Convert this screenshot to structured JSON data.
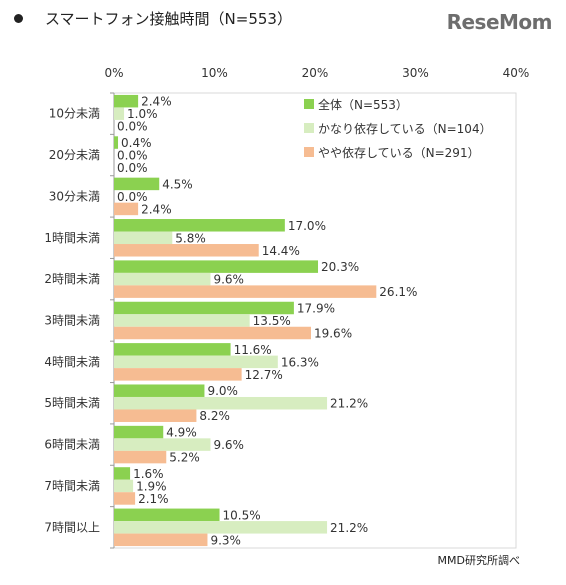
{
  "title": "スマートフォン接触時間（N=553）",
  "logo": "ReseMom",
  "source": "MMD研究所調べ",
  "colors": {
    "series": [
      "#8bd150",
      "#d7edc0",
      "#f6bc92"
    ],
    "axis_line": "#9a9a9a",
    "text": "#333333"
  },
  "chart_data": {
    "type": "bar",
    "orientation": "horizontal",
    "title": "スマートフォン接触時間（N=553）",
    "categories": [
      "10分未満",
      "20分未満",
      "30分未満",
      "1時間未満",
      "2時間未満",
      "3時間未満",
      "4時間未満",
      "5時間未満",
      "6時間未満",
      "7時間未満",
      "7時間以上"
    ],
    "x_ticks": [
      "0%",
      "10%",
      "20%",
      "30%",
      "40%"
    ],
    "xlim": [
      0,
      40
    ],
    "unit": "%",
    "legend_position": "top-right",
    "grid": false,
    "series": [
      {
        "name": "全体（N=553）",
        "values": [
          2.4,
          0.4,
          4.5,
          17.0,
          20.3,
          17.9,
          11.6,
          9.0,
          4.9,
          1.6,
          10.5
        ]
      },
      {
        "name": "かなり依存している（N=104）",
        "values": [
          1.0,
          0.0,
          0.0,
          5.8,
          9.6,
          13.5,
          16.3,
          21.2,
          9.6,
          1.9,
          21.2
        ]
      },
      {
        "name": "やや依存している（N=291）",
        "values": [
          0.0,
          0.0,
          2.4,
          14.4,
          26.1,
          19.6,
          12.7,
          8.2,
          5.2,
          2.1,
          9.3
        ]
      }
    ]
  }
}
